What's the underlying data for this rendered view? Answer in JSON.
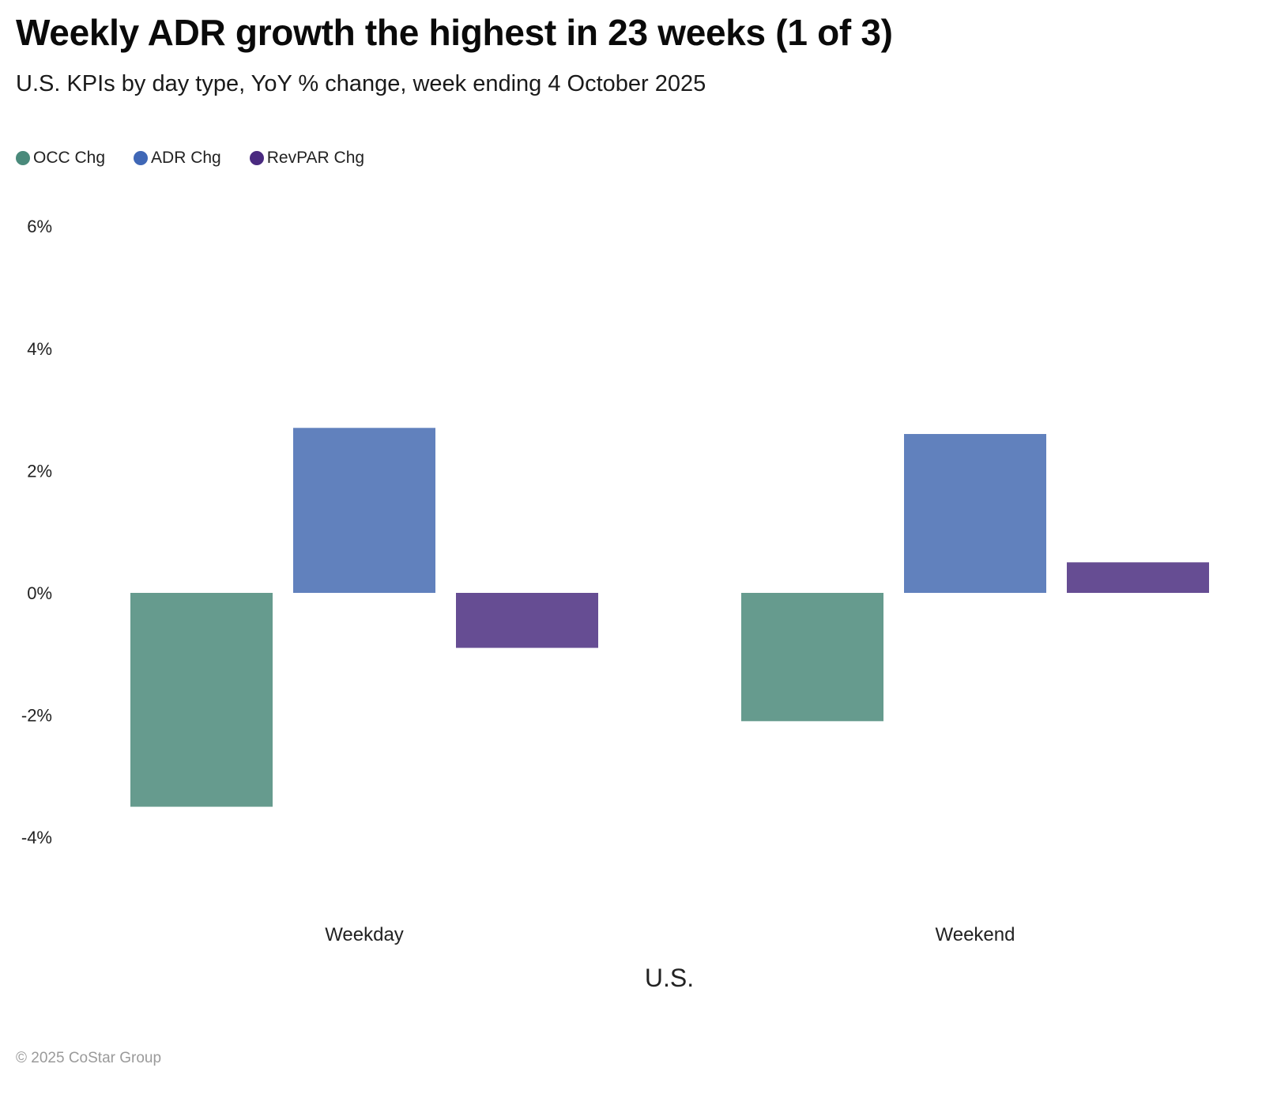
{
  "header": {
    "title": "Weekly ADR growth the highest in 23 weeks (1 of 3)",
    "subtitle": "U.S. KPIs by day type, YoY % change, week ending 4 October 2025"
  },
  "footer": {
    "copyright": "© 2025 CoStar Group"
  },
  "chart_data": {
    "type": "bar",
    "title": "Weekly ADR growth the highest in 23 weeks (1 of 3)",
    "subtitle": "U.S. KPIs by day type, YoY % change, week ending 4 October 2025",
    "xlabel": "U.S.",
    "ylabel": "",
    "categories": [
      "Weekday",
      "Weekend"
    ],
    "series": [
      {
        "name": "OCC Chg",
        "color": "#669b8e",
        "legend_color": "#4a8a7b",
        "values": [
          -3.5,
          -2.1
        ]
      },
      {
        "name": "ADR Chg",
        "color": "#6181bd",
        "legend_color": "#3f67b6",
        "values": [
          2.7,
          2.6
        ]
      },
      {
        "name": "RevPAR Chg",
        "color": "#664d93",
        "legend_color": "#4a2a80",
        "values": [
          -0.9,
          0.5
        ]
      }
    ],
    "yticks": [
      6,
      4,
      2,
      0,
      -2,
      -4
    ],
    "ytick_labels": [
      "6%",
      "4%",
      "2%",
      "0%",
      "-2%",
      "-4%"
    ],
    "ylim": [
      -4,
      6
    ],
    "grid": false,
    "legend_position": "top-left"
  }
}
